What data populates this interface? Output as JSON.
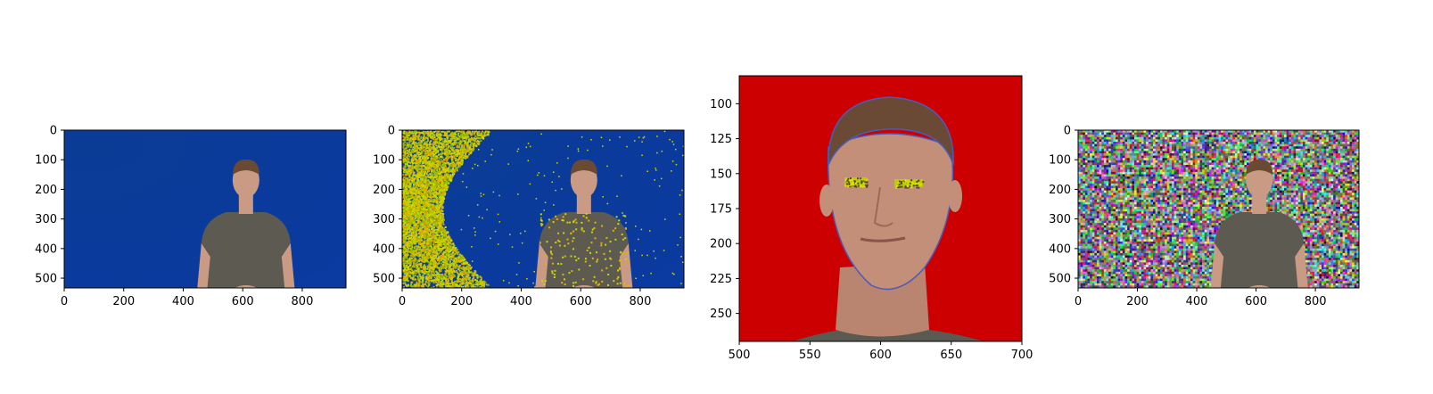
{
  "panels": [
    {
      "id": "panel-1",
      "xlim": [
        0,
        947
      ],
      "ylim_top": 0,
      "ylim_bottom": 533,
      "xticks": [
        "0",
        "200",
        "400",
        "600",
        "800"
      ],
      "xtick_values": [
        0,
        200,
        400,
        600,
        800
      ],
      "yticks": [
        "0",
        "100",
        "200",
        "300",
        "400",
        "500"
      ],
      "ytick_values": [
        0,
        100,
        200,
        300,
        400,
        500
      ],
      "background": "#0b3aa0",
      "effect": "none"
    },
    {
      "id": "panel-2",
      "xlim": [
        0,
        947
      ],
      "ylim_top": 0,
      "ylim_bottom": 533,
      "xticks": [
        "0",
        "200",
        "400",
        "600",
        "800"
      ],
      "xtick_values": [
        0,
        200,
        400,
        600,
        800
      ],
      "yticks": [
        "0",
        "100",
        "200",
        "300",
        "400",
        "500"
      ],
      "ytick_values": [
        0,
        100,
        200,
        300,
        400,
        500
      ],
      "background": "#0b3aa0",
      "effect": "yellow-green-speckle"
    },
    {
      "id": "panel-3",
      "xlim": [
        500,
        700
      ],
      "ylim_top": 80,
      "ylim_bottom": 270,
      "xticks": [
        "500",
        "550",
        "600",
        "650",
        "700"
      ],
      "xtick_values": [
        500,
        550,
        600,
        650,
        700
      ],
      "yticks": [
        "100",
        "125",
        "150",
        "175",
        "200",
        "225",
        "250"
      ],
      "ytick_values": [
        100,
        125,
        150,
        175,
        200,
        225,
        250
      ],
      "background": "#cc0000",
      "effect": "face-crop"
    },
    {
      "id": "panel-4",
      "xlim": [
        0,
        947
      ],
      "ylim_top": 0,
      "ylim_bottom": 533,
      "xticks": [
        "0",
        "200",
        "400",
        "600",
        "800"
      ],
      "xtick_values": [
        0,
        200,
        400,
        600,
        800
      ],
      "yticks": [
        "0",
        "100",
        "200",
        "300",
        "400",
        "500"
      ],
      "ytick_values": [
        0,
        100,
        200,
        300,
        400,
        500
      ],
      "background": "#808080",
      "effect": "rgb-noise"
    }
  ]
}
